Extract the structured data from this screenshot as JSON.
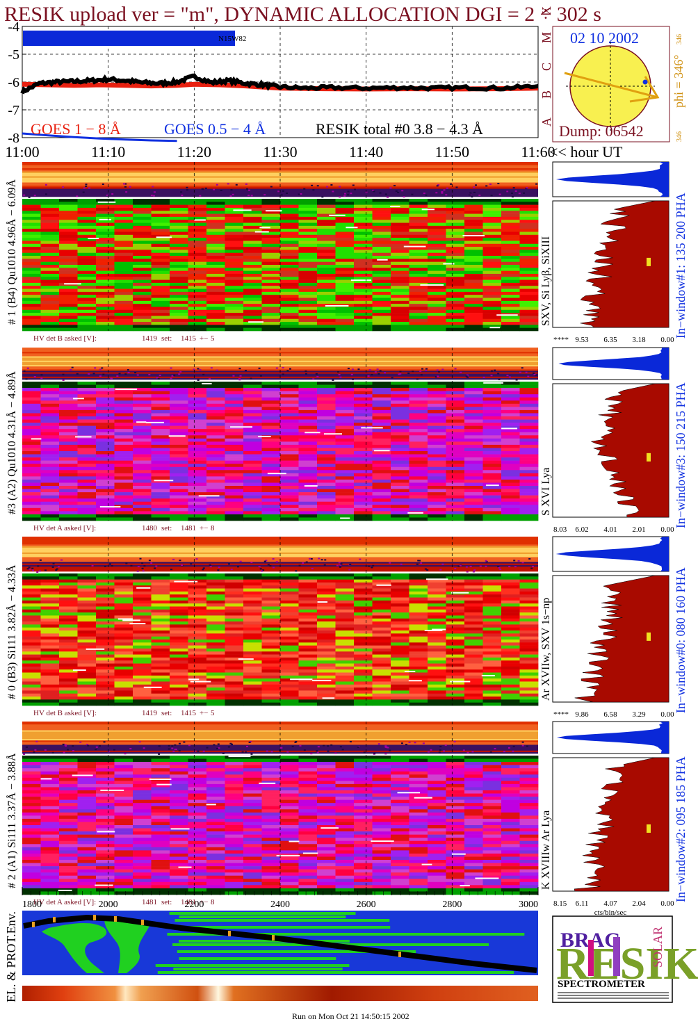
{
  "header": {
    "title": "RESIK upload ver = \"m\", DYNAMIC ALLOCATION  DGI =   2 ÷ 302 s",
    "date": "02 10 2002",
    "dump": "Dump: 06542",
    "phi_label": "phi = 346°",
    "phi_top": "346",
    "phi_bottom": "346",
    "footer": "Run on Mon Oct 21 14:50:15 2002"
  },
  "colors": {
    "title": "#7a1020",
    "goes_long": "#e82010",
    "goes_short": "#1030e0",
    "resik": "#000000",
    "sun": "#f8f050",
    "pha_top": "#0a28d8",
    "pha_spectrum": "#a80a00",
    "marker": "#f0e020",
    "trajectory": "#e8a020",
    "earth_ocean": "#1838d8",
    "earth_land": "#20d020"
  },
  "chart_data": [
    {
      "type": "line",
      "name": "flux-panel",
      "ylim": [
        -8,
        -4
      ],
      "yticks": [
        "-4",
        "-5",
        "-6",
        "-7",
        "-8"
      ],
      "flare_classes": [
        "X",
        "M",
        "C",
        "B",
        "A"
      ],
      "xlim": [
        11.0,
        11.6
      ],
      "xticks": [
        "11:00",
        "11:10",
        "11:20",
        "11:30",
        "11:40",
        "11:50",
        "11:60"
      ],
      "x_unit_label": "<< hour UT",
      "noaa_label": "N15W82",
      "legend": [
        {
          "label": "GOES 1 − 8 Å",
          "color": "#e82010"
        },
        {
          "label": "GOES 0.5 − 4 Å",
          "color": "#1030e0"
        },
        {
          "label": "RESIK total #0  3.8 − 4.3 Å",
          "color": "#000000"
        }
      ],
      "series": [
        {
          "name": "GOES 1 − 8 Å",
          "x": [
            11.0,
            11.03,
            11.06,
            11.09,
            11.12,
            11.15,
            11.18,
            11.2,
            11.23,
            11.26,
            11.3,
            11.35,
            11.4,
            11.45,
            11.5,
            11.55,
            11.6
          ],
          "values": [
            -6.08,
            -6.1,
            -6.12,
            -6.1,
            -6.12,
            -6.14,
            -6.12,
            -6.08,
            -6.1,
            -6.14,
            -6.22,
            -6.24,
            -6.25,
            -6.24,
            -6.25,
            -6.24,
            -6.22
          ]
        },
        {
          "name": "GOES 0.5 − 4 Å",
          "x": [
            11.0,
            11.03,
            11.06,
            11.09,
            11.12,
            11.15,
            11.18
          ],
          "values": [
            -7.85,
            -7.92,
            -7.98,
            -8.03,
            -8.07,
            -8.1,
            -8.12
          ]
        },
        {
          "name": "RESIK total #0  3.8 − 4.3 Å",
          "x": [
            11.0,
            11.02,
            11.04,
            11.06,
            11.08,
            11.1,
            11.12,
            11.14,
            11.16,
            11.18,
            11.2,
            11.22,
            11.24,
            11.26,
            11.28,
            11.3,
            11.33,
            11.36,
            11.4,
            11.44,
            11.48,
            11.52,
            11.56,
            11.6
          ],
          "values": [
            -6.35,
            -6.05,
            -6.0,
            -5.98,
            -5.95,
            -5.9,
            -5.95,
            -6.02,
            -6.05,
            -6.0,
            -5.8,
            -6.02,
            -5.95,
            -6.05,
            -6.1,
            -6.18,
            -6.22,
            -6.2,
            -6.22,
            -6.2,
            -6.22,
            -6.2,
            -6.22,
            -6.15
          ]
        }
      ]
    },
    {
      "type": "heatmap",
      "name": "detector-spectrograms",
      "detectors": [
        {
          "label": "# 1 (B4) Qu1010 4.96Å − 6.09Å",
          "lines": "SXV, Si Lyβ, SiXIII",
          "window": "In−window#1:  135 200 PHA",
          "hv": {
            "label": "HV det B asked [V]:",
            "asked": "1419",
            "set_label": "set:",
            "set": "1415",
            "pm": "+−",
            "tol": "5"
          },
          "pha_ticks": [
            "****",
            "9.53",
            "6.35",
            "3.18",
            "0.00"
          ],
          "palette": "rg",
          "marker_y": 0.45
        },
        {
          "label": "#3 (A2) Qu1010  4.31Å − 4.89Å",
          "lines": "S XVI Lya",
          "window": "In−window#3:  150 215 PHA",
          "hv": {
            "label": "HV det A asked [V]:",
            "asked": "1480",
            "set_label": "set:",
            "set": "1481",
            "pm": "+−",
            "tol": "8"
          },
          "pha_ticks": [
            "8.03",
            "6.02",
            "4.01",
            "2.01",
            "0.00"
          ],
          "palette": "mag",
          "marker_y": 0.52
        },
        {
          "label": "# 0 (B3) Si111  3.82Å − 4.33Å",
          "lines": "Ar XVIIw,  SXV 1s−np",
          "window": "In−window#0:  080 160 PHA",
          "hv": {
            "label": "HV det B asked [V]:",
            "asked": "1419",
            "set_label": "set:",
            "set": "1415",
            "pm": "+−",
            "tol": "5"
          },
          "pha_ticks": [
            "****",
            "9.86",
            "6.58",
            "3.29",
            "0.00"
          ],
          "palette": "red",
          "marker_y": 0.45
        },
        {
          "label": "# 2 (A1) Si111  3.37Å − 3.88Å",
          "lines": "K XVIIIw  Ar Lya",
          "window": "In−window#2:  095 185 PHA",
          "hv": {
            "label": "HV det A asked [V]:",
            "asked": "1481",
            "set_label": "set:",
            "set": "1481",
            "pm": "+−",
            "tol": "8"
          },
          "pha_ticks": [
            "8.15",
            "6.11",
            "4.07",
            "2.04",
            "0.00"
          ],
          "palette": "mag",
          "marker_y": 0.5
        }
      ],
      "bottom_axis": {
        "ticks": [
          "1800",
          "2000",
          "2200",
          "2400",
          "2600",
          "2800",
          "3000"
        ]
      },
      "pha_axis_label": "cts/bin/sec"
    },
    {
      "type": "line",
      "name": "orbit-panel",
      "label": "EL. & PROT.Env."
    }
  ],
  "logo": {
    "letters": "RESIK",
    "small_words": [
      "BRAG",
      "SOLAR"
    ],
    "caption": "SPECTROMETER"
  }
}
